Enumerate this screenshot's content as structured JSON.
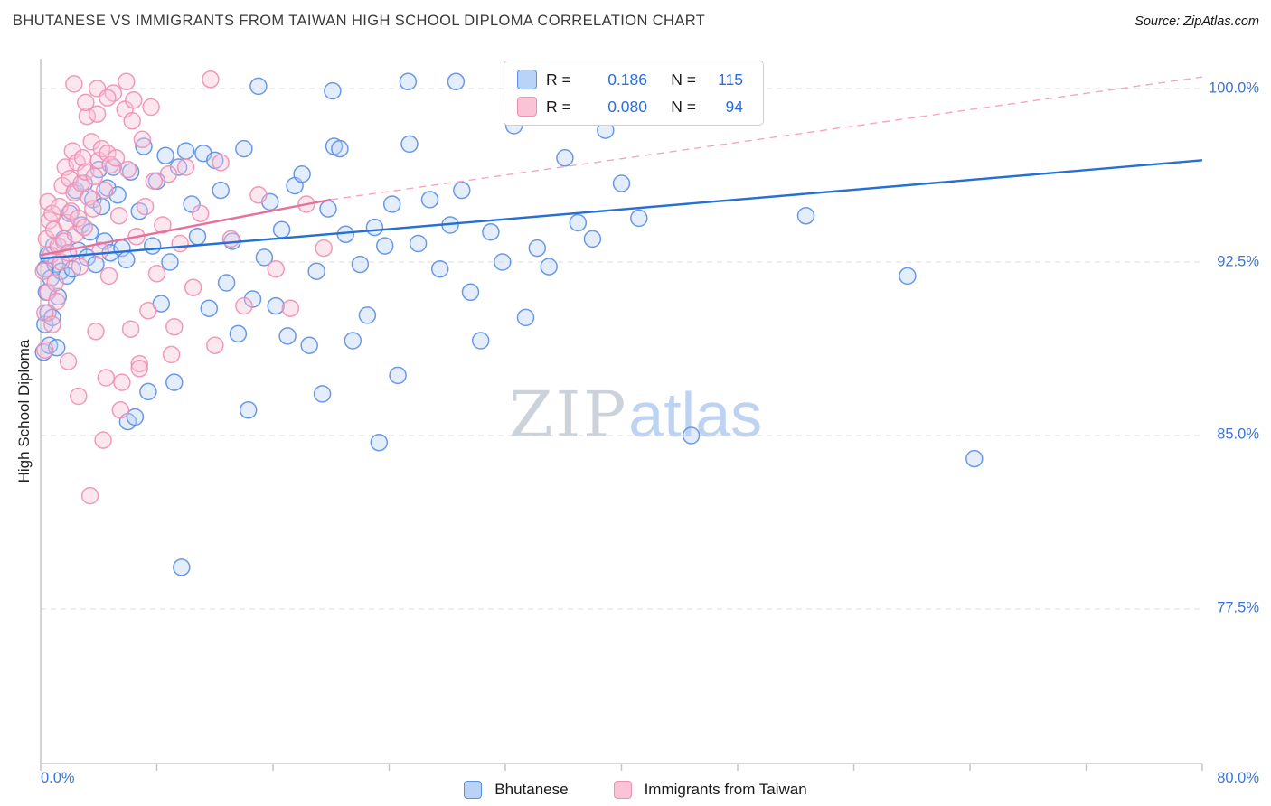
{
  "header": {
    "title": "BHUTANESE VS IMMIGRANTS FROM TAIWAN HIGH SCHOOL DIPLOMA CORRELATION CHART",
    "source": "Source: ZipAtlas.com"
  },
  "watermark": {
    "zip": "ZIP",
    "atlas": "atlas"
  },
  "legend_box": {
    "rows": [
      {
        "series": "Bhutanese",
        "r_label": "R =",
        "r": "0.186",
        "n_label": "N =",
        "n": "115"
      },
      {
        "series": "Immigrants from Taiwan",
        "r_label": "R =",
        "r": "0.080",
        "n_label": "N =",
        "n": "94"
      }
    ]
  },
  "bottom_legend": [
    {
      "label": "Bhutanese"
    },
    {
      "label": "Immigrants from Taiwan"
    }
  ],
  "chart_data": {
    "type": "scatter",
    "title": "BHUTANESE VS IMMIGRANTS FROM TAIWAN HIGH SCHOOL DIPLOMA CORRELATION CHART",
    "xlabel": "",
    "ylabel": "High School Diploma",
    "x_range": [
      0,
      80
    ],
    "y_range": [
      70.8,
      101.3
    ],
    "grid": "horizontal-dashed",
    "legend_position": "top-center",
    "x_ticks": [
      {
        "value": 0,
        "label": "0.0%"
      },
      {
        "value": 80,
        "label": "80.0%"
      }
    ],
    "y_ticks": [
      {
        "value": 100,
        "label": "100.0%"
      },
      {
        "value": 92.5,
        "label": "92.5%"
      },
      {
        "value": 85,
        "label": "85.0%"
      },
      {
        "value": 77.5,
        "label": "77.5%"
      }
    ],
    "series": [
      {
        "name": "Bhutanese",
        "R": 0.186,
        "N": 115,
        "fill": "#b9d3f8",
        "stroke": "#5b8ee6",
        "points": [
          [
            0.2,
            88.6
          ],
          [
            0.3,
            89.8
          ],
          [
            0.4,
            91.2
          ],
          [
            0.5,
            90.3
          ],
          [
            0.3,
            92.2
          ],
          [
            0.6,
            88.9
          ],
          [
            0.7,
            91.8
          ],
          [
            0.5,
            92.8
          ],
          [
            0.8,
            90.1
          ],
          [
            1.0,
            92.4
          ],
          [
            1.1,
            88.8
          ],
          [
            1.2,
            91.0
          ],
          [
            0.9,
            93.2
          ],
          [
            1.4,
            92.1
          ],
          [
            1.6,
            93.5
          ],
          [
            1.8,
            91.9
          ],
          [
            2.0,
            94.6
          ],
          [
            2.2,
            92.2
          ],
          [
            2.4,
            95.6
          ],
          [
            2.6,
            93.0
          ],
          [
            2.8,
            94.1
          ],
          [
            3.0,
            95.9
          ],
          [
            3.2,
            92.7
          ],
          [
            3.4,
            93.8
          ],
          [
            3.6,
            95.2
          ],
          [
            3.8,
            92.4
          ],
          [
            4.0,
            96.5
          ],
          [
            4.2,
            94.9
          ],
          [
            4.4,
            93.4
          ],
          [
            4.6,
            95.7
          ],
          [
            4.8,
            92.9
          ],
          [
            5.0,
            96.6
          ],
          [
            5.3,
            95.4
          ],
          [
            5.6,
            93.1
          ],
          [
            5.9,
            92.6
          ],
          [
            6.0,
            85.6
          ],
          [
            6.2,
            96.4
          ],
          [
            6.5,
            85.8
          ],
          [
            6.8,
            94.7
          ],
          [
            7.1,
            97.5
          ],
          [
            7.4,
            86.9
          ],
          [
            7.7,
            93.2
          ],
          [
            8.0,
            96.0
          ],
          [
            8.3,
            90.7
          ],
          [
            8.6,
            97.1
          ],
          [
            8.9,
            92.5
          ],
          [
            9.2,
            87.3
          ],
          [
            9.5,
            96.6
          ],
          [
            9.7,
            79.3
          ],
          [
            10.0,
            97.3
          ],
          [
            10.4,
            95.0
          ],
          [
            10.8,
            93.6
          ],
          [
            11.2,
            97.2
          ],
          [
            11.6,
            90.5
          ],
          [
            12.0,
            96.9
          ],
          [
            12.4,
            95.6
          ],
          [
            12.8,
            91.6
          ],
          [
            13.2,
            93.4
          ],
          [
            13.6,
            89.4
          ],
          [
            14.0,
            97.4
          ],
          [
            14.3,
            86.1
          ],
          [
            14.6,
            90.9
          ],
          [
            15.0,
            100.1
          ],
          [
            15.4,
            92.7
          ],
          [
            15.8,
            95.1
          ],
          [
            16.2,
            90.6
          ],
          [
            16.6,
            93.9
          ],
          [
            17.0,
            89.3
          ],
          [
            17.5,
            95.8
          ],
          [
            18.0,
            96.3
          ],
          [
            18.5,
            88.9
          ],
          [
            19.0,
            92.1
          ],
          [
            19.4,
            86.8
          ],
          [
            19.8,
            94.8
          ],
          [
            20.1,
            99.9
          ],
          [
            20.2,
            97.5
          ],
          [
            20.6,
            97.4
          ],
          [
            21.0,
            93.7
          ],
          [
            21.5,
            89.1
          ],
          [
            22.0,
            92.4
          ],
          [
            22.5,
            90.2
          ],
          [
            23.0,
            94.0
          ],
          [
            23.3,
            84.7
          ],
          [
            23.7,
            93.2
          ],
          [
            24.2,
            95.0
          ],
          [
            24.6,
            87.6
          ],
          [
            25.3,
            100.3
          ],
          [
            25.4,
            97.6
          ],
          [
            26.0,
            93.3
          ],
          [
            26.8,
            95.2
          ],
          [
            27.5,
            92.2
          ],
          [
            28.2,
            94.1
          ],
          [
            28.6,
            100.3
          ],
          [
            29.0,
            95.6
          ],
          [
            29.6,
            91.2
          ],
          [
            30.3,
            89.1
          ],
          [
            31.0,
            93.8
          ],
          [
            31.8,
            92.5
          ],
          [
            32.6,
            98.4
          ],
          [
            33.4,
            90.1
          ],
          [
            34.2,
            93.1
          ],
          [
            35.0,
            92.3
          ],
          [
            36.1,
            97.0
          ],
          [
            37.0,
            94.2
          ],
          [
            38.0,
            93.5
          ],
          [
            38.9,
            98.2
          ],
          [
            40.0,
            95.9
          ],
          [
            41.2,
            94.4
          ],
          [
            42.2,
            99.8
          ],
          [
            43.0,
            98.8
          ],
          [
            44.6,
            99.9
          ],
          [
            44.8,
            85.0
          ],
          [
            52.7,
            94.5
          ],
          [
            59.7,
            91.9
          ],
          [
            64.3,
            84.0
          ]
        ]
      },
      {
        "name": "Immigrants from Taiwan",
        "R": 0.08,
        "N": 94,
        "fill": "#fbc3d6",
        "stroke": "#ef8fb2",
        "points": [
          [
            0.2,
            92.1
          ],
          [
            0.3,
            90.3
          ],
          [
            0.4,
            93.5
          ],
          [
            0.5,
            91.2
          ],
          [
            0.6,
            94.3
          ],
          [
            0.3,
            88.7
          ],
          [
            0.7,
            92.8
          ],
          [
            0.8,
            89.8
          ],
          [
            0.9,
            93.9
          ],
          [
            1.0,
            91.6
          ],
          [
            0.5,
            95.1
          ],
          [
            0.8,
            94.6
          ],
          [
            1.1,
            90.8
          ],
          [
            1.2,
            93.2
          ],
          [
            1.3,
            94.9
          ],
          [
            1.4,
            92.5
          ],
          [
            1.5,
            95.8
          ],
          [
            1.6,
            93.4
          ],
          [
            1.7,
            96.6
          ],
          [
            1.8,
            94.2
          ],
          [
            1.9,
            92.9
          ],
          [
            2.0,
            96.1
          ],
          [
            2.1,
            94.7
          ],
          [
            2.2,
            97.3
          ],
          [
            2.3,
            95.5
          ],
          [
            2.4,
            93.7
          ],
          [
            2.5,
            96.8
          ],
          [
            2.6,
            94.4
          ],
          [
            2.7,
            92.3
          ],
          [
            2.8,
            95.9
          ],
          [
            2.9,
            97.0
          ],
          [
            3.0,
            94.0
          ],
          [
            3.1,
            96.4
          ],
          [
            3.2,
            98.8
          ],
          [
            3.3,
            95.3
          ],
          [
            3.4,
            82.4
          ],
          [
            3.5,
            97.7
          ],
          [
            3.6,
            94.8
          ],
          [
            3.7,
            96.2
          ],
          [
            3.8,
            89.5
          ],
          [
            3.9,
            98.9
          ],
          [
            4.0,
            96.9
          ],
          [
            4.1,
            93.0
          ],
          [
            4.2,
            97.4
          ],
          [
            4.3,
            84.8
          ],
          [
            4.4,
            95.6
          ],
          [
            4.5,
            87.5
          ],
          [
            4.6,
            97.2
          ],
          [
            4.7,
            91.9
          ],
          [
            4.8,
            96.7
          ],
          [
            5.0,
            99.8
          ],
          [
            5.2,
            97.0
          ],
          [
            5.4,
            94.5
          ],
          [
            5.6,
            87.3
          ],
          [
            5.8,
            99.1
          ],
          [
            6.0,
            96.5
          ],
          [
            6.2,
            89.6
          ],
          [
            6.4,
            99.5
          ],
          [
            6.6,
            93.6
          ],
          [
            6.8,
            88.1
          ],
          [
            7.0,
            97.8
          ],
          [
            7.2,
            94.9
          ],
          [
            7.4,
            90.4
          ],
          [
            7.6,
            99.2
          ],
          [
            7.8,
            96.0
          ],
          [
            8.0,
            92.0
          ],
          [
            8.4,
            94.1
          ],
          [
            8.8,
            96.3
          ],
          [
            9.2,
            89.7
          ],
          [
            9.6,
            93.3
          ],
          [
            10.0,
            96.6
          ],
          [
            10.5,
            91.4
          ],
          [
            11.0,
            94.6
          ],
          [
            11.7,
            100.4
          ],
          [
            12.4,
            96.8
          ],
          [
            13.1,
            93.5
          ],
          [
            14.0,
            90.6
          ],
          [
            15.0,
            95.4
          ],
          [
            16.2,
            92.2
          ],
          [
            17.2,
            90.5
          ],
          [
            18.3,
            95.0
          ],
          [
            19.5,
            93.1
          ],
          [
            2.3,
            100.2
          ],
          [
            3.1,
            99.4
          ],
          [
            3.9,
            100.0
          ],
          [
            4.6,
            99.6
          ],
          [
            5.9,
            100.3
          ],
          [
            6.3,
            98.6
          ],
          [
            1.9,
            88.2
          ],
          [
            2.6,
            86.7
          ],
          [
            5.5,
            86.1
          ],
          [
            6.8,
            87.9
          ],
          [
            9.0,
            88.5
          ],
          [
            12.0,
            88.9
          ]
        ]
      }
    ],
    "trend_lines": [
      {
        "series": "Bhutanese",
        "style": "solid",
        "color": "#2570d4",
        "from": [
          0,
          92.65
        ],
        "to": [
          80,
          96.9
        ]
      },
      {
        "series": "Immigrants from Taiwan",
        "style": "solid",
        "color": "#e8709a",
        "from": [
          0,
          92.8
        ],
        "to": [
          20,
          95.2
        ]
      },
      {
        "series": "Immigrants from Taiwan",
        "style": "dashed",
        "color": "#f4a7bd",
        "from": [
          20,
          95.2
        ],
        "to": [
          80,
          100.5
        ]
      }
    ]
  }
}
